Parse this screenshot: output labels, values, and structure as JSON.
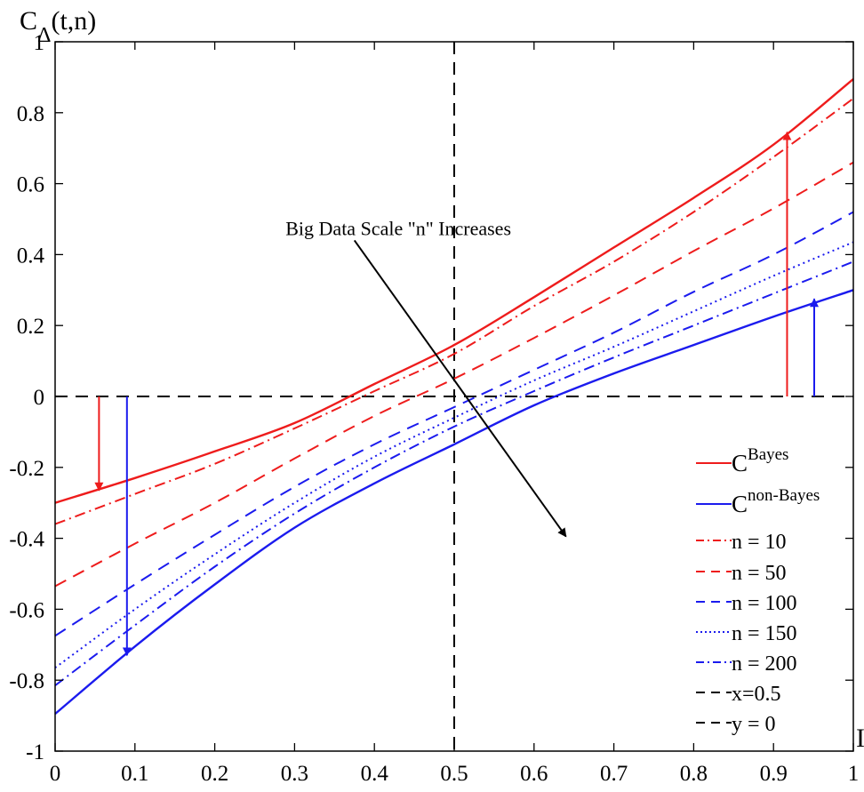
{
  "chart_data": {
    "type": "line",
    "title": "",
    "xlabel": "",
    "ylabel": {
      "main": "C",
      "sub": "Δ",
      "args": "(t,n)"
    },
    "x_edge_label": "I",
    "xlim": [
      0,
      1
    ],
    "ylim": [
      -1,
      1
    ],
    "xticks": [
      "0",
      "0.1",
      "0.2",
      "0.3",
      "0.4",
      "0.5",
      "0.6",
      "0.7",
      "0.8",
      "0.9",
      "1"
    ],
    "yticks": [
      "1",
      "0.8",
      "0.6",
      "0.4",
      "0.2",
      "0",
      "-0.2",
      "-0.4",
      "-0.6",
      "-0.8",
      "-1"
    ],
    "x": [
      0,
      0.1,
      0.2,
      0.3,
      0.4,
      0.5,
      0.6,
      0.7,
      0.8,
      0.9,
      1.0
    ],
    "series": [
      {
        "name": "C^Bayes",
        "label_main": "C",
        "label_sup": "Bayes",
        "color": "#ee1c1c",
        "dash": "solid",
        "values": [
          -0.3,
          -0.23,
          -0.155,
          -0.075,
          0.035,
          0.145,
          0.28,
          0.42,
          0.56,
          0.71,
          0.895
        ]
      },
      {
        "name": "C^non-Bayes",
        "label_main": "C",
        "label_sup": "non-Bayes",
        "color": "#1b1bee",
        "dash": "solid",
        "values": [
          -0.895,
          -0.705,
          -0.53,
          -0.37,
          -0.245,
          -0.135,
          -0.025,
          0.065,
          0.145,
          0.225,
          0.3
        ]
      },
      {
        "name": "n = 10",
        "label_main": "n = 10",
        "color": "#ee1c1c",
        "dash": "dashdot",
        "values": [
          -0.36,
          -0.275,
          -0.19,
          -0.09,
          0.015,
          0.12,
          0.255,
          0.38,
          0.52,
          0.675,
          0.84
        ]
      },
      {
        "name": "n = 50",
        "label_main": "n = 50",
        "color": "#ee1c1c",
        "dash": "dashed",
        "values": [
          -0.535,
          -0.415,
          -0.3,
          -0.175,
          -0.055,
          0.05,
          0.165,
          0.285,
          0.41,
          0.53,
          0.66
        ]
      },
      {
        "name": "n = 100",
        "label_main": "n = 100",
        "color": "#1b1bee",
        "dash": "dashed",
        "values": [
          -0.675,
          -0.53,
          -0.39,
          -0.255,
          -0.135,
          -0.03,
          0.075,
          0.18,
          0.295,
          0.4,
          0.52
        ]
      },
      {
        "name": "n = 150",
        "label_main": "n = 150",
        "color": "#1b1bee",
        "dash": "dotted",
        "values": [
          -0.765,
          -0.6,
          -0.445,
          -0.3,
          -0.17,
          -0.06,
          0.045,
          0.14,
          0.24,
          0.34,
          0.435
        ]
      },
      {
        "name": "n = 200",
        "label_main": "n = 200",
        "color": "#1b1bee",
        "dash": "dashdot",
        "values": [
          -0.815,
          -0.645,
          -0.48,
          -0.33,
          -0.2,
          -0.085,
          0.015,
          0.11,
          0.2,
          0.29,
          0.38
        ]
      },
      {
        "name": "x=0.5",
        "label_main": "x=0.5",
        "color": "#000000",
        "dash": "dashed",
        "vertical_x": 0.5
      },
      {
        "name": "y = 0",
        "label_main": "y = 0",
        "color": "#000000",
        "dash": "dashed",
        "horizontal_y": 0
      }
    ],
    "arrows": [
      {
        "color": "#ee1c1c",
        "from": [
          0.055,
          0
        ],
        "to": [
          0.055,
          -0.265
        ]
      },
      {
        "color": "#1b1bee",
        "from": [
          0.09,
          0
        ],
        "to": [
          0.09,
          -0.73
        ]
      },
      {
        "color": "#ee1c1c",
        "from": [
          0.917,
          0
        ],
        "to": [
          0.917,
          0.745
        ]
      },
      {
        "color": "#1b1bee",
        "from": [
          0.951,
          0
        ],
        "to": [
          0.951,
          0.275
        ]
      },
      {
        "color": "#000000",
        "from": [
          0.375,
          0.44
        ],
        "to": [
          0.64,
          -0.395
        ]
      }
    ],
    "annotation": {
      "text": "Big Data Scale \"n\" Increases",
      "x": 0.43,
      "y": 0.455
    },
    "legend_position": "bottom-right",
    "grid": false
  }
}
